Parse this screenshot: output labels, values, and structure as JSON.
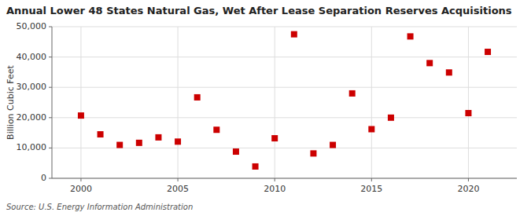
{
  "chart_data": {
    "type": "scatter",
    "title": "Annual Lower 48 States Natural Gas, Wet After Lease Separation Reserves Acquisitions",
    "ylabel": "Billion Cubic Feet",
    "annotations": [
      "Source: U.S. Energy Information Administration"
    ],
    "x": [
      2000,
      2001,
      2002,
      2003,
      2004,
      2005,
      2006,
      2007,
      2008,
      2009,
      2010,
      2011,
      2012,
      2013,
      2014,
      2015,
      2016,
      2017,
      2018,
      2019,
      2020,
      2021
    ],
    "values": [
      20700,
      14500,
      11000,
      11700,
      13500,
      12100,
      26700,
      16000,
      8800,
      3900,
      13200,
      47500,
      8200,
      11000,
      28000,
      16200,
      20000,
      46800,
      38000,
      34900,
      21500,
      41700
    ],
    "color": "#cc0000",
    "marker": "square",
    "xlim": [
      1998.5,
      2022.5
    ],
    "xticks": [
      2000,
      2005,
      2010,
      2015,
      2020
    ],
    "ylim": [
      0,
      50000
    ],
    "yticks": [
      0,
      {
        "value": 10000,
        "label": "10,000"
      },
      {
        "value": 20000,
        "label": "20,000"
      },
      {
        "value": 30000,
        "label": "30,000"
      },
      {
        "value": 40000,
        "label": "40,000"
      },
      {
        "value": 50000,
        "label": "50,000"
      }
    ],
    "grid": true
  }
}
